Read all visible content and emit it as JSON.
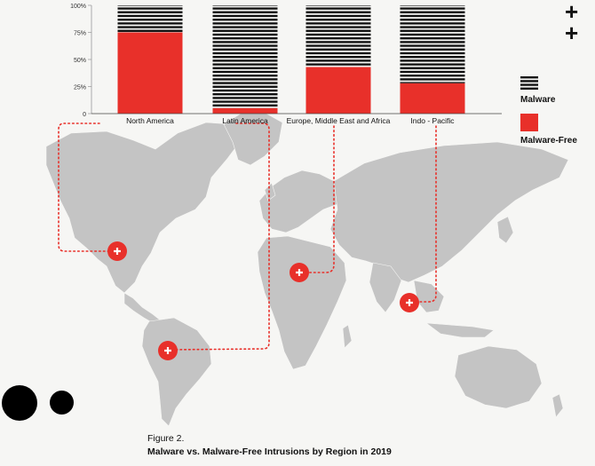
{
  "chart_data": {
    "type": "stacked-bar",
    "categories": [
      "North America",
      "Latin America",
      "Europe, Middle East and Africa",
      "Indo - Pacific"
    ],
    "series": [
      {
        "name": "Malware-Free",
        "values": [
          75,
          5,
          43,
          28
        ]
      },
      {
        "name": "Malware",
        "values": [
          25,
          95,
          57,
          72
        ]
      }
    ],
    "ytick_labels": [
      "0",
      "25%",
      "50%",
      "75%",
      "100%"
    ],
    "ylim": [
      0,
      100
    ],
    "legend_position": "right",
    "grid": false
  },
  "legend": {
    "malware_label": "Malware",
    "malware_free_label": "Malware-Free"
  },
  "caption": {
    "figure_label": "Figure 2.",
    "title": "Malware vs. Malware-Free Intrusions by Region in 2019"
  },
  "colors": {
    "accent_red": "#e8302a",
    "stripe_black": "#111111",
    "map_gray": "#c4c4c4",
    "background": "#f6f6f4"
  },
  "icons": [
    "plus-icon",
    "map-marker-plus-icon"
  ]
}
